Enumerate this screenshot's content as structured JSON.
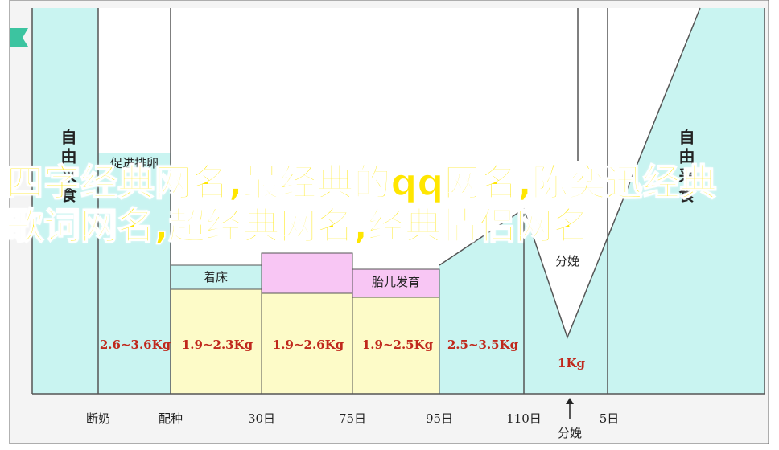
{
  "header": {
    "title": "四字经典网名,最经典的qq网名,陈奕迅经典歌词网名,超经典网名,经典情侣网名"
  },
  "diagram": {
    "side_labels": [
      "自由采食",
      "自由采食"
    ],
    "stages": [
      {
        "label": "促进排卵",
        "weight": "2.6~3.6Kg"
      },
      {
        "label": "着床",
        "weight": "1.9~2.3Kg"
      },
      {
        "weight": "1.9~2.6Kg"
      },
      {
        "label": "胎儿发育",
        "weight": "1.9~2.5Kg"
      },
      {
        "weight": "2.5~3.5Kg"
      },
      {
        "label": "分娩",
        "weight": "1Kg"
      }
    ],
    "x_labels": [
      "断奶",
      "配种",
      "30日",
      "75日",
      "95日",
      "110日",
      "5日"
    ],
    "arrow_label": "分娩"
  }
}
